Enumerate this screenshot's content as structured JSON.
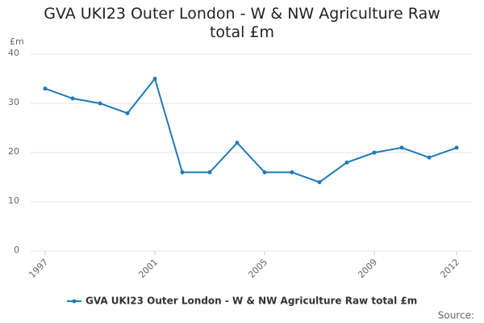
{
  "chart_data": {
    "type": "line",
    "title": "GVA UKI23 Outer London - W & NW Agriculture Raw total £m",
    "ylabel": "£m",
    "source_label": "Source:",
    "x": [
      1997,
      1998,
      1999,
      2000,
      2001,
      2002,
      2003,
      2004,
      2005,
      2006,
      2007,
      2008,
      2009,
      2010,
      2011,
      2012
    ],
    "xlim": [
      1997,
      2012
    ],
    "xticks": [
      1997,
      2001,
      2005,
      2009,
      2012
    ],
    "series": [
      {
        "name": "GVA UKI23 Outer London - W & NW Agriculture Raw total £m",
        "color": "#1f7bb6",
        "values": [
          33,
          31,
          30,
          28,
          35,
          16,
          16,
          22,
          16,
          16,
          14,
          18,
          20,
          21,
          19,
          21
        ]
      }
    ],
    "ylim": [
      0,
      40
    ],
    "yticks": [
      0,
      10,
      20,
      30,
      40
    ],
    "grid": true
  }
}
